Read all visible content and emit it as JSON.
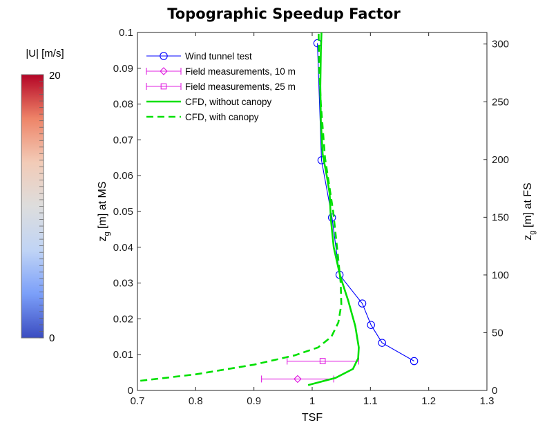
{
  "chart_data": {
    "type": "line",
    "title": "Topographic Speedup Factor",
    "xlabel": "TSF",
    "ylabel": "z_g [m] at MS",
    "ylabel_right": "z_g [m] at FS",
    "xlim": [
      0.7,
      1.3
    ],
    "ylim": [
      0,
      0.1
    ],
    "ylim_right": [
      0,
      310
    ],
    "xticks": [
      "0.7",
      "0.8",
      "0.9",
      "1",
      "1.1",
      "1.2",
      "1.3"
    ],
    "yticks": [
      "0",
      "0.01",
      "0.02",
      "0.03",
      "0.04",
      "0.05",
      "0.06",
      "0.07",
      "0.08",
      "0.09",
      "0.1"
    ],
    "yticks_right": [
      "0",
      "50",
      "100",
      "150",
      "200",
      "250",
      "300"
    ],
    "grid": false,
    "legend_position": "top-left",
    "series": [
      {
        "name": "Wind tunnel test",
        "kind": "line-markers",
        "marker": "circle",
        "color": "#0000ff",
        "points": [
          [
            1.175,
            0.0082
          ],
          [
            1.12,
            0.0133
          ],
          [
            1.101,
            0.0183
          ],
          [
            1.086,
            0.0243
          ],
          [
            1.047,
            0.0323
          ],
          [
            1.034,
            0.0483
          ],
          [
            1.016,
            0.0643
          ],
          [
            1.009,
            0.097
          ]
        ]
      },
      {
        "name": "Field measurements, 10 m",
        "kind": "errorbar",
        "marker": "diamond",
        "color": "#e020e0",
        "points": [
          {
            "x": 0.975,
            "y": 0.0032,
            "xerr_low": 0.913,
            "xerr_high": 1.037
          }
        ]
      },
      {
        "name": "Field measurements, 25 m",
        "kind": "errorbar",
        "marker": "square",
        "color": "#e020e0",
        "points": [
          {
            "x": 1.018,
            "y": 0.0082,
            "xerr_low": 0.957,
            "xerr_high": 1.08
          }
        ]
      },
      {
        "name": "CFD, without canopy",
        "kind": "line",
        "style": "solid",
        "color": "#00e000",
        "points": [
          [
            0.993,
            0.0015
          ],
          [
            1.04,
            0.0035
          ],
          [
            1.07,
            0.006
          ],
          [
            1.079,
            0.009
          ],
          [
            1.08,
            0.012
          ],
          [
            1.074,
            0.018
          ],
          [
            1.062,
            0.025
          ],
          [
            1.048,
            0.032
          ],
          [
            1.037,
            0.04
          ],
          [
            1.032,
            0.048
          ],
          [
            1.03,
            0.055
          ],
          [
            1.025,
            0.06
          ],
          [
            1.018,
            0.066
          ],
          [
            1.015,
            0.075
          ],
          [
            1.014,
            0.085
          ],
          [
            1.015,
            0.095
          ],
          [
            1.016,
            0.1
          ]
        ]
      },
      {
        "name": "CFD, with canopy",
        "kind": "line",
        "style": "dashed",
        "color": "#00e000",
        "points": [
          [
            0.705,
            0.0027
          ],
          [
            0.8,
            0.0045
          ],
          [
            0.9,
            0.0072
          ],
          [
            0.97,
            0.0098
          ],
          [
            1.01,
            0.012
          ],
          [
            1.033,
            0.015
          ],
          [
            1.045,
            0.019
          ],
          [
            1.05,
            0.024
          ],
          [
            1.049,
            0.03
          ],
          [
            1.044,
            0.038
          ],
          [
            1.036,
            0.05
          ],
          [
            1.022,
            0.065
          ],
          [
            1.015,
            0.08
          ],
          [
            1.012,
            0.09
          ],
          [
            1.011,
            0.1
          ]
        ]
      }
    ],
    "colorbar": {
      "label": "|U| [m/s]",
      "min_label": "0",
      "max_label": "20",
      "colors": [
        "#3b4cc0",
        "#7b9ff9",
        "#c0d4f5",
        "#dddddd",
        "#f2cbb7",
        "#ee8468",
        "#b40426"
      ]
    }
  }
}
